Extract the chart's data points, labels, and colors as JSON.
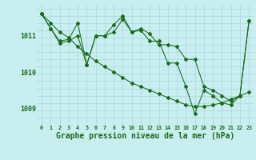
{
  "background_color": "#c8eef0",
  "grid_color": "#a8d8dc",
  "line_color": "#1a6b1a",
  "xlabel": "Graphe pression niveau de la mer (hPa)",
  "xlabel_fontsize": 7.0,
  "ytick_labels": [
    1009,
    1010,
    1011
  ],
  "ylim": [
    1008.55,
    1011.85
  ],
  "xlim": [
    -0.5,
    23.5
  ],
  "series1_y": [
    1011.6,
    1011.35,
    1011.1,
    1010.95,
    1010.7,
    1010.5,
    1010.3,
    1010.15,
    1010.0,
    1009.85,
    1009.7,
    1009.6,
    1009.5,
    1009.4,
    1009.3,
    1009.2,
    1009.1,
    1009.05,
    1009.05,
    1009.1,
    1009.15,
    1009.25,
    1009.35,
    1009.45
  ],
  "series2_y": [
    1011.6,
    1011.2,
    1010.85,
    1010.9,
    1011.35,
    1010.2,
    1011.0,
    1011.0,
    1011.1,
    1011.45,
    1011.1,
    1011.2,
    1011.05,
    1010.75,
    1010.75,
    1010.7,
    1010.35,
    1010.35,
    1009.6,
    1009.5,
    1009.35,
    1009.2,
    1009.35,
    1011.4
  ],
  "series3_y": [
    1011.6,
    1011.2,
    1010.8,
    1010.85,
    1011.0,
    1010.2,
    1011.0,
    1011.0,
    1011.3,
    1011.55,
    1011.1,
    1011.15,
    1010.85,
    1010.85,
    1010.25,
    1010.25,
    1009.6,
    1008.85,
    1009.5,
    1009.35,
    1009.15,
    1009.1,
    1009.35,
    1011.4
  ]
}
